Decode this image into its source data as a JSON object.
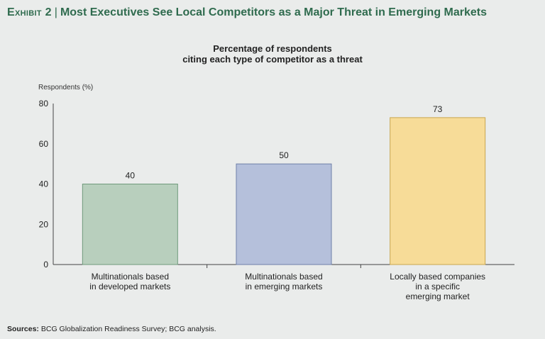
{
  "exhibit": {
    "label": "Exhibit 2",
    "title": "Most Executives See Local Competitors as a Major Threat in Emerging Markets"
  },
  "chart_data": {
    "type": "bar",
    "title_lines": [
      "Percentage of respondents",
      "citing each type of competitor as a threat"
    ],
    "ylabel": "Respondents (%)",
    "xlabel": "",
    "ylim": [
      0,
      80
    ],
    "yticks": [
      0,
      20,
      40,
      60,
      80
    ],
    "grid": false,
    "categories": [
      [
        "Multinationals based",
        "in developed markets"
      ],
      [
        "Multinationals based",
        "in emerging markets"
      ],
      [
        "Locally based companies",
        "in a specific",
        "emerging market"
      ]
    ],
    "values": [
      40,
      50,
      73
    ],
    "colors": [
      "#b8cfbd",
      "#b5c0db",
      "#f7dc98"
    ],
    "edge_colors": [
      "#6f9a7c",
      "#6f7fa8",
      "#c9a64e"
    ]
  },
  "sources": {
    "label": "Sources:",
    "text": "BCG Globalization Readiness Survey; BCG analysis."
  }
}
